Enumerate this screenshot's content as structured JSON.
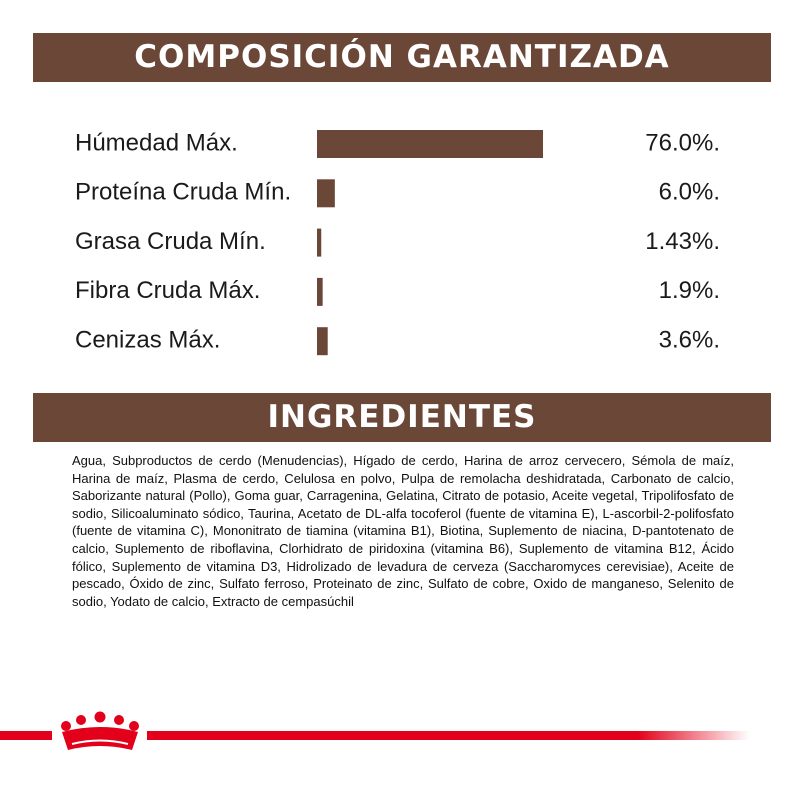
{
  "chart_data": {
    "type": "bar",
    "orientation": "horizontal",
    "title": "COMPOSICIÓN GARANTIZADA",
    "categories": [
      "Húmedad Máx.",
      "Proteína Cruda Mín.",
      "Grasa Cruda Mín.",
      "Fibra Cruda Máx.",
      "Cenizas Máx."
    ],
    "values": [
      76.0,
      6.0,
      1.43,
      1.9,
      3.6
    ],
    "value_labels": [
      "76.0%.",
      "6.0%.",
      "1.43%.",
      "1.9%.",
      "3.6%."
    ],
    "color": "#6b4738"
  },
  "ingredients": {
    "title": "INGREDIENTES",
    "text": "Agua, Subproductos de cerdo (Menudencias), Hígado de cerdo, Harina de arroz cervecero, Sémola de maíz, Harina de maíz, Plasma de cerdo, Celulosa en polvo, Pulpa de remolacha deshidratada, Carbonato de calcio, Saborizante natural (Pollo), Goma guar, Carragenina, Gelatina, Citrato de potasio, Aceite vegetal, Tripolifosfato de sodio, Silicoaluminato sódico, Taurina, Acetato de DL-alfa tocoferol (fuente de vitamina E), L-ascorbil-2-polifosfato (fuente de vitamina C), Mononitrato de tiamina (vitamina B1), Biotina, Suplemento de niacina, D-pantotenato de calcio, Suplemento de riboflavina, Clorhidrato de piridoxina (vitamina B6), Suplemento de vitamina B12, Ácido fólico, Suplemento de vitamina D3, Hidrolizado de levadura de cerveza (Saccharomyces cerevisiae), Aceite de pescado, Óxido de zinc, Sulfato ferroso, Proteinato de zinc, Sulfato de cobre, Oxido de manganeso, Selenito de sodio, Yodato de calcio, Extracto de cempasúchil"
  }
}
